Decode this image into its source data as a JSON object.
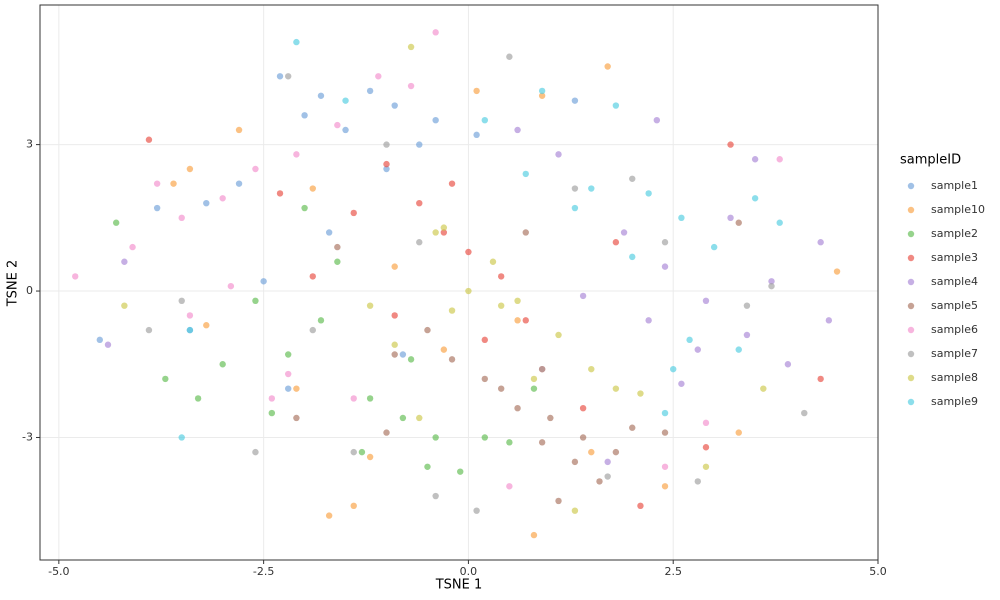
{
  "chart_data": {
    "type": "scatter",
    "x_label": "TSNE 1",
    "y_label": "TSNE 2",
    "legend_title": "sampleID",
    "legend_position": "right",
    "grid": true,
    "xlim": [
      -5.23,
      5.0
    ],
    "ylim": [
      -5.51,
      5.86
    ],
    "xticks": [
      {
        "value": -5,
        "label": "-5.0"
      },
      {
        "value": -2.5,
        "label": "-2.5"
      },
      {
        "value": 0,
        "label": "0.0"
      },
      2.5,
      {
        "value": 5,
        "label": "5.0"
      }
    ],
    "yticks": [
      -3,
      0,
      3
    ],
    "series": [
      {
        "name": "sample1",
        "color": "#6f9fd8",
        "x": [
          -2.3,
          -1.8,
          -1.5,
          -1.2,
          -0.9,
          -0.6,
          -2.8,
          -3.2,
          -2.0,
          -1.0,
          -0.4,
          -3.8,
          -4.5,
          -3.4,
          -2.5,
          -1.7,
          -0.8,
          -2.2,
          0.1,
          1.3
        ],
        "values": [
          4.4,
          4.0,
          3.3,
          4.1,
          3.8,
          3.0,
          2.2,
          1.8,
          3.6,
          2.5,
          3.5,
          1.7,
          -1.0,
          -0.8,
          0.2,
          1.2,
          -1.3,
          -2.0,
          3.2,
          3.9
        ]
      },
      {
        "name": "sample10",
        "color": "#f9a040",
        "x": [
          -3.4,
          -2.8,
          -1.9,
          -0.9,
          0.1,
          0.9,
          1.7,
          -3.2,
          -2.1,
          -1.2,
          -0.3,
          0.6,
          1.5,
          2.4,
          3.3,
          4.5,
          -1.7,
          -1.4,
          0.8,
          -3.6
        ],
        "values": [
          2.5,
          3.3,
          2.1,
          0.5,
          4.1,
          4.0,
          4.6,
          -0.7,
          -2.0,
          -3.4,
          -1.2,
          -0.6,
          -3.3,
          -4.0,
          -2.9,
          0.4,
          -4.6,
          -4.4,
          -5.0,
          2.2
        ]
      },
      {
        "name": "sample2",
        "color": "#5dbb4f",
        "x": [
          -3.7,
          -3.0,
          -2.2,
          -1.8,
          -1.2,
          -0.8,
          -0.4,
          -0.1,
          0.5,
          -2.6,
          -1.6,
          -0.7,
          0.2,
          -3.3,
          -2.4,
          -1.3,
          -0.5,
          0.8,
          -2.0,
          -4.3
        ],
        "values": [
          -1.8,
          -1.5,
          -1.3,
          -0.6,
          -2.2,
          -2.6,
          -3.0,
          -3.7,
          -3.1,
          -0.2,
          0.6,
          -1.4,
          -3.0,
          -2.2,
          -2.5,
          -3.3,
          -3.6,
          -2.0,
          1.7,
          1.4
        ]
      },
      {
        "name": "sample3",
        "color": "#e8493f",
        "x": [
          -1.4,
          -1.0,
          -0.6,
          -0.3,
          0.0,
          0.4,
          0.7,
          -1.9,
          -0.9,
          0.2,
          0.9,
          1.4,
          2.1,
          2.9,
          3.2,
          -3.9,
          -2.3,
          -0.2,
          1.8,
          4.3
        ],
        "values": [
          1.6,
          2.6,
          1.8,
          1.2,
          0.8,
          0.3,
          -0.6,
          0.3,
          -0.5,
          -1.0,
          -1.6,
          -2.4,
          -4.4,
          -3.2,
          3.0,
          3.1,
          2.0,
          2.2,
          1.0,
          -1.8
        ]
      },
      {
        "name": "sample4",
        "color": "#a884d6",
        "x": [
          1.1,
          1.9,
          2.4,
          2.9,
          3.4,
          3.9,
          4.4,
          1.4,
          2.2,
          2.8,
          3.2,
          3.7,
          4.3,
          0.6,
          1.7,
          2.6,
          3.5,
          -4.4,
          -4.2,
          2.3
        ],
        "values": [
          2.8,
          1.2,
          0.5,
          -0.2,
          -0.9,
          -1.5,
          -0.6,
          -0.1,
          -0.6,
          -1.2,
          1.5,
          0.2,
          1.0,
          3.3,
          -3.5,
          -1.9,
          2.7,
          -1.1,
          0.6,
          3.5
        ]
      },
      {
        "name": "sample5",
        "color": "#a8705c",
        "x": [
          -0.5,
          0.2,
          0.6,
          1.0,
          1.4,
          1.8,
          -0.2,
          0.4,
          0.9,
          1.3,
          2.0,
          -1.0,
          -1.6,
          -2.1,
          0.7,
          1.6,
          2.4,
          -0.9,
          1.1,
          3.3
        ],
        "values": [
          -0.8,
          -1.8,
          -2.4,
          -2.6,
          -3.0,
          -3.3,
          -1.4,
          -2.0,
          -3.1,
          -3.5,
          -2.8,
          -2.9,
          0.9,
          -2.6,
          1.2,
          -3.9,
          -2.9,
          -1.3,
          -4.3,
          1.4
        ]
      },
      {
        "name": "sample6",
        "color": "#f28dcc",
        "x": [
          -4.8,
          -4.1,
          -3.5,
          -3.0,
          -2.6,
          -2.1,
          -1.6,
          -1.1,
          -0.7,
          -3.8,
          -2.9,
          -2.2,
          -1.4,
          -3.4,
          -2.4,
          -0.4,
          0.5,
          3.8,
          2.9,
          2.4
        ],
        "values": [
          0.3,
          0.9,
          1.5,
          1.9,
          2.5,
          2.8,
          3.4,
          4.4,
          4.2,
          2.2,
          0.1,
          -1.7,
          -2.2,
          -0.5,
          -2.2,
          5.3,
          -4.0,
          2.7,
          -2.7,
          -3.6
        ]
      },
      {
        "name": "sample7",
        "color": "#9e9e9e",
        "x": [
          -2.2,
          -1.0,
          0.5,
          1.3,
          2.0,
          2.8,
          3.7,
          4.1,
          -3.5,
          -2.6,
          -1.9,
          -0.4,
          0.9,
          1.7,
          2.4,
          3.4,
          -1.4,
          0.1,
          -3.9,
          -0.6
        ],
        "values": [
          4.4,
          3.0,
          4.8,
          2.1,
          2.3,
          -3.9,
          0.1,
          -2.5,
          -0.2,
          -3.3,
          -0.8,
          -4.2,
          -1.6,
          -3.8,
          1.0,
          -0.3,
          -3.3,
          -4.5,
          -0.8,
          1.0
        ]
      },
      {
        "name": "sample8",
        "color": "#cdc84a",
        "x": [
          -0.7,
          -0.4,
          0.0,
          0.3,
          0.6,
          -1.2,
          -0.2,
          0.4,
          1.1,
          1.5,
          2.1,
          -0.9,
          -0.3,
          0.8,
          1.8,
          2.9,
          -4.2,
          -0.6,
          1.3,
          3.6
        ],
        "values": [
          5.0,
          1.2,
          0.0,
          0.6,
          -0.2,
          -0.3,
          -0.4,
          -0.3,
          -0.9,
          -1.6,
          -2.1,
          -1.1,
          1.3,
          -1.8,
          -2.0,
          -3.6,
          -0.3,
          -2.6,
          -4.5,
          -2.0
        ]
      },
      {
        "name": "sample9",
        "color": "#4fcde0",
        "x": [
          -2.1,
          0.2,
          0.9,
          1.5,
          1.8,
          2.2,
          2.6,
          3.0,
          3.5,
          3.8,
          2.0,
          2.5,
          3.3,
          1.3,
          2.4,
          2.7,
          -3.4,
          -3.5,
          -1.5,
          0.7
        ],
        "values": [
          5.1,
          3.5,
          4.1,
          2.1,
          3.8,
          2.0,
          1.5,
          0.9,
          1.9,
          1.4,
          0.7,
          -1.6,
          -1.2,
          1.7,
          -2.5,
          -1.0,
          -0.8,
          -3.0,
          3.9,
          2.4
        ]
      }
    ]
  }
}
